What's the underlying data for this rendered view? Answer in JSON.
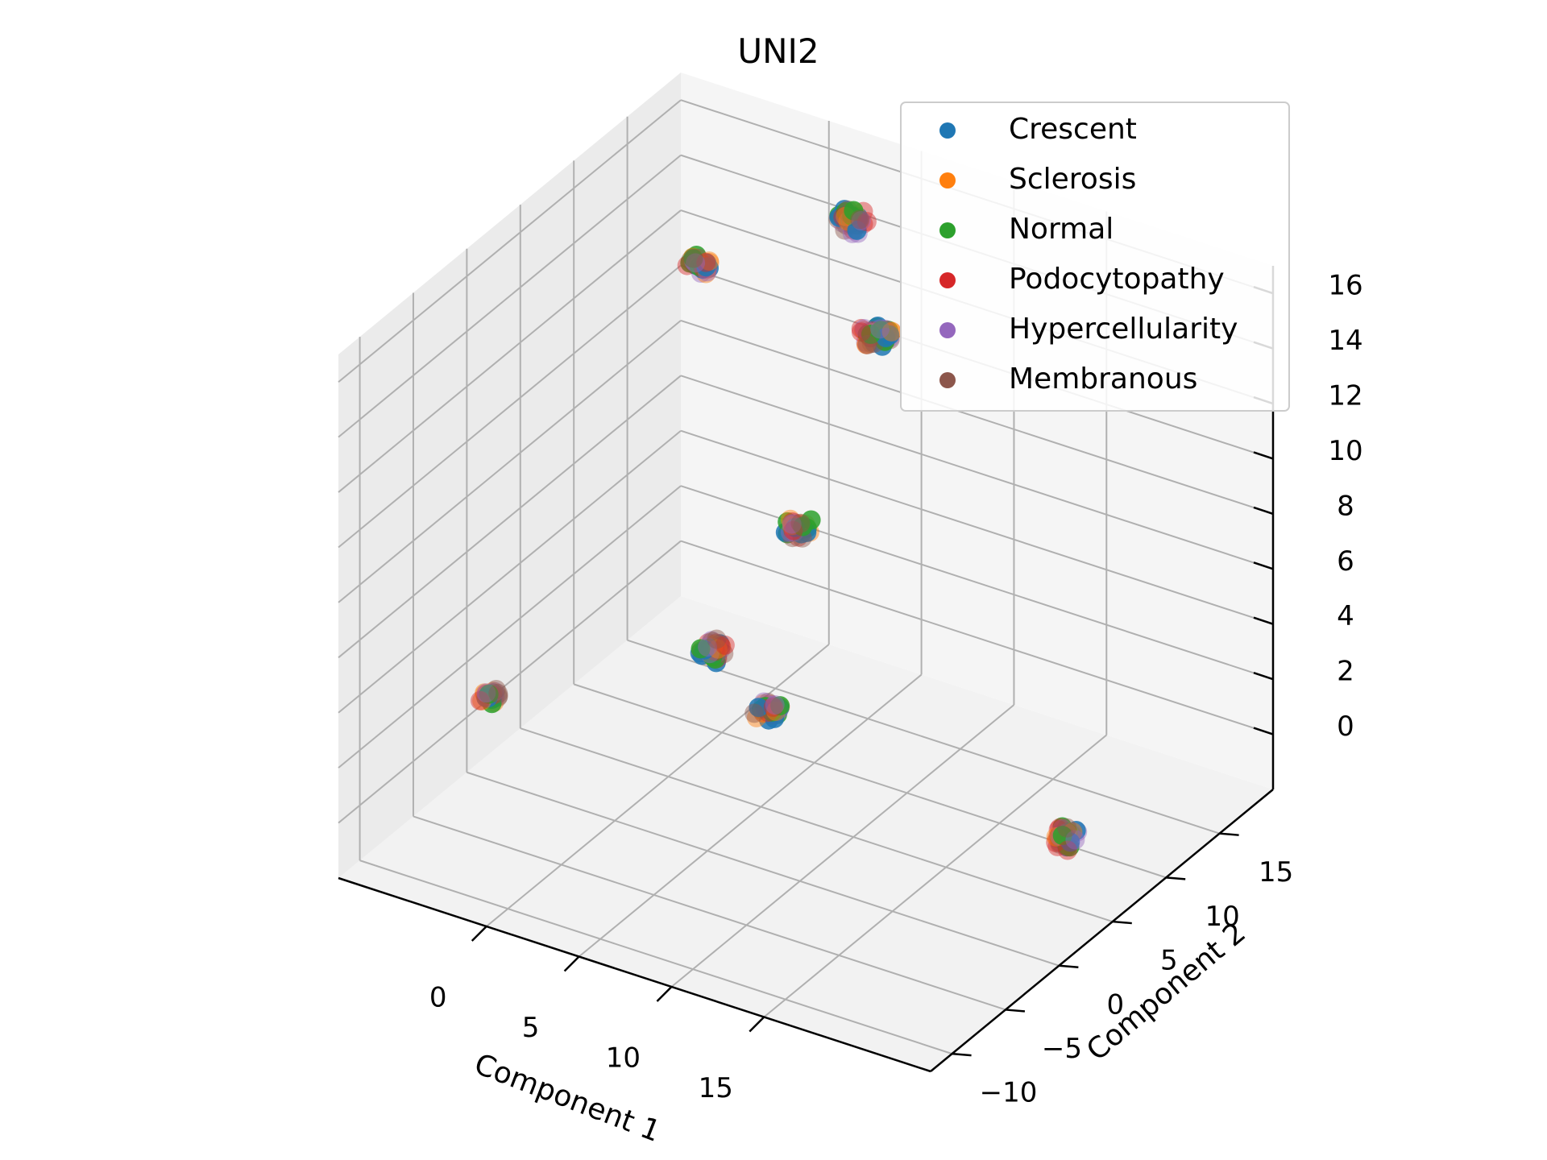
{
  "chart_data": {
    "type": "scatter",
    "projection": "3d",
    "title": "UNI2",
    "xlabel": "Component 1",
    "ylabel": "Component 2",
    "zlabel": "",
    "xlim": [
      -8,
      24
    ],
    "ylim": [
      -12,
      20
    ],
    "zlim": [
      -2,
      17
    ],
    "xticks": [
      "0",
      "5",
      "10",
      "15"
    ],
    "xtick_values": [
      0,
      5,
      10,
      15
    ],
    "yticks": [
      "−10",
      "−5",
      "0",
      "5",
      "10",
      "15"
    ],
    "ytick_values": [
      -10,
      -5,
      0,
      5,
      10,
      15
    ],
    "zticks": [
      "0",
      "2",
      "4",
      "6",
      "8",
      "10",
      "12",
      "14",
      "16"
    ],
    "ztick_values": [
      0,
      2,
      4,
      6,
      8,
      10,
      12,
      14,
      16
    ],
    "grid": true,
    "legend_position": "top-right",
    "series": [
      {
        "name": "Crescent",
        "color": "#1f77b4"
      },
      {
        "name": "Sclerosis",
        "color": "#ff7f0e"
      },
      {
        "name": "Normal",
        "color": "#2ca02c"
      },
      {
        "name": "Podocytopathy",
        "color": "#d62728"
      },
      {
        "name": "Hypercellularity",
        "color": "#9467bd"
      },
      {
        "name": "Membranous",
        "color": "#8c564b"
      }
    ],
    "clusters": [
      {
        "x": -3.0,
        "y": 13.0,
        "z": 13.4,
        "n": 6,
        "spread": 0.5
      },
      {
        "x": 3.0,
        "y": 17.0,
        "z": 15.0,
        "n": 7,
        "spread": 0.6
      },
      {
        "x": 5.5,
        "y": 15.0,
        "z": 12.0,
        "n": 7,
        "spread": 0.6
      },
      {
        "x": 5.0,
        "y": 8.5,
        "z": 7.0,
        "n": 6,
        "spread": 0.5
      },
      {
        "x": 3.5,
        "y": 3.0,
        "z": 4.0,
        "n": 7,
        "spread": 0.5
      },
      {
        "x": 6.0,
        "y": 4.0,
        "z": 2.0,
        "n": 6,
        "spread": 0.5
      },
      {
        "x": -5.5,
        "y": -2.0,
        "z": 2.0,
        "n": 5,
        "spread": 0.4
      },
      {
        "x": 21.5,
        "y": 5.0,
        "z": 0.5,
        "n": 6,
        "spread": 0.5
      }
    ]
  }
}
